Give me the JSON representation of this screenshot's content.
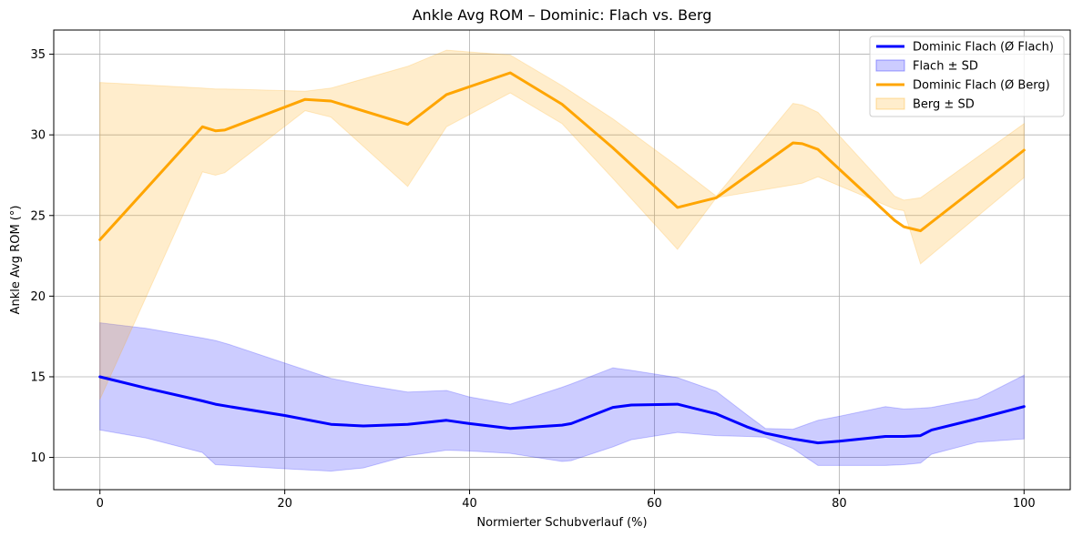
{
  "chart_data": {
    "type": "line",
    "title": "Ankle Avg ROM – Dominic: Flach vs. Berg",
    "xlabel": "Normierter Schubverlauf (%)",
    "ylabel": "Ankle Avg ROM (°)",
    "xlim": [
      -5,
      105
    ],
    "ylim": [
      8,
      36.5
    ],
    "xticks": [
      0,
      20,
      40,
      60,
      80,
      100
    ],
    "yticks": [
      10,
      15,
      20,
      25,
      30,
      35
    ],
    "grid": true,
    "legend_position": "top-right",
    "series": [
      {
        "name": "Dominic Flach (Ø Flach)",
        "color": "#0000ff",
        "band_name": "Flach ± SD",
        "band_color": "#0000ff",
        "x": [
          0,
          5,
          11.1,
          12.5,
          14,
          20,
          25,
          28.5,
          33.3,
          37.5,
          40,
          44.4,
          50,
          51,
          55.5,
          57.5,
          62.5,
          66.7,
          70,
          72,
          75,
          77.7,
          80,
          85,
          87,
          88.8,
          90,
          95,
          100
        ],
        "y": [
          15.0,
          14.3,
          13.5,
          13.3,
          13.15,
          12.6,
          12.05,
          11.95,
          12.05,
          12.3,
          12.1,
          11.8,
          12.0,
          12.1,
          13.1,
          13.25,
          13.3,
          12.7,
          11.9,
          11.5,
          11.15,
          10.9,
          11.0,
          11.3,
          11.3,
          11.35,
          11.7,
          12.4,
          13.15
        ],
        "lower": [
          11.7,
          11.2,
          10.3,
          9.55,
          9.5,
          9.3,
          9.15,
          9.35,
          10.1,
          10.45,
          10.4,
          10.25,
          9.75,
          9.8,
          10.65,
          11.1,
          11.55,
          11.35,
          11.3,
          11.25,
          10.55,
          9.5,
          9.5,
          9.5,
          9.55,
          9.65,
          10.2,
          10.95,
          11.15
        ],
        "upper": [
          18.35,
          18.0,
          17.4,
          17.25,
          17.0,
          15.85,
          14.9,
          14.5,
          14.05,
          14.15,
          13.75,
          13.3,
          14.35,
          14.55,
          15.55,
          15.4,
          14.95,
          14.1,
          12.65,
          11.8,
          11.75,
          12.3,
          12.55,
          13.15,
          13.0,
          13.05,
          13.1,
          13.65,
          15.1
        ]
      },
      {
        "name": "Dominic Flach (Ø Berg)",
        "color": "#ffa500",
        "band_name": "Berg ± SD",
        "band_color": "#ffa500",
        "x": [
          0,
          11.1,
          12.5,
          13.5,
          22.2,
          25,
          33.3,
          37.5,
          44.4,
          50,
          55.5,
          62.5,
          66.7,
          75,
          76,
          77.7,
          86,
          87,
          88.8,
          100
        ],
        "y": [
          23.5,
          30.5,
          30.25,
          30.3,
          32.2,
          32.1,
          30.65,
          32.5,
          33.85,
          31.9,
          29.2,
          25.5,
          26.1,
          29.5,
          29.45,
          29.1,
          24.7,
          24.3,
          24.05,
          29.05
        ],
        "lower": [
          13.6,
          27.7,
          27.5,
          27.65,
          31.5,
          31.1,
          26.8,
          30.5,
          32.6,
          30.7,
          27.3,
          22.9,
          26.1,
          26.9,
          27.0,
          27.4,
          25.4,
          25.3,
          22.0,
          27.35
        ],
        "upper": [
          33.25,
          32.9,
          32.85,
          32.85,
          32.7,
          32.9,
          34.25,
          35.25,
          34.95,
          33.05,
          31.0,
          28.05,
          26.2,
          31.95,
          31.85,
          31.4,
          26.2,
          25.95,
          26.1,
          30.7
        ]
      }
    ]
  }
}
